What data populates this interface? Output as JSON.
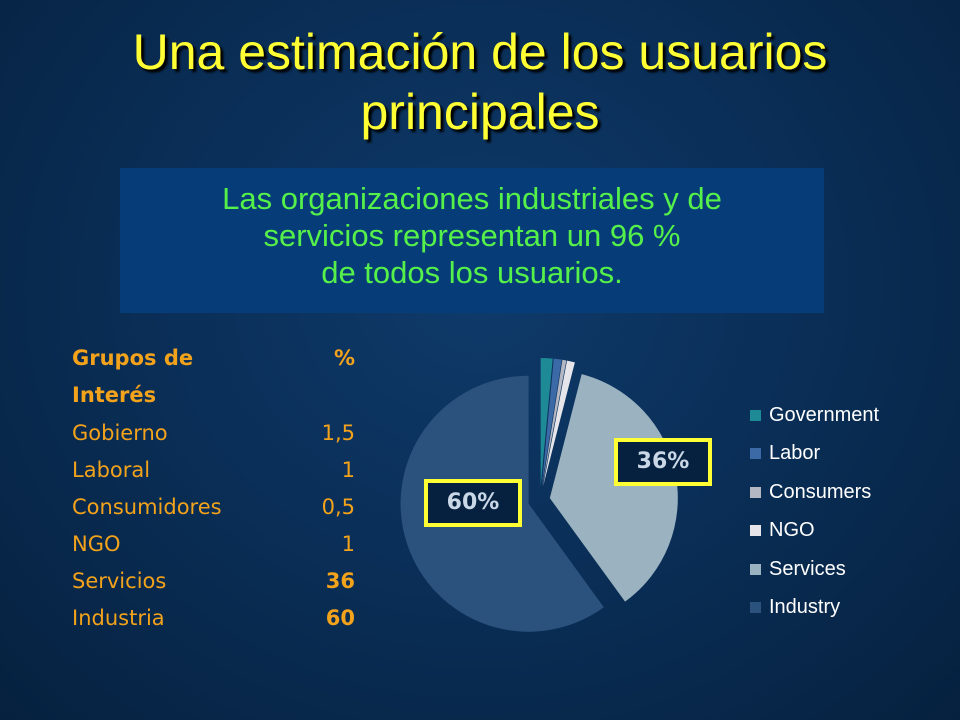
{
  "title": {
    "line1": "Una estimación de los usuarios",
    "line2": "principales"
  },
  "subtitle": {
    "line1": "Las organizaciones industriales y de",
    "line2": "servicios representan un 96 %",
    "line3": "de todos los usuarios."
  },
  "table": {
    "header_name_line1": "Grupos de",
    "header_name_line2": "Interés",
    "header_pct": "%",
    "rows": [
      {
        "name": "Gobierno",
        "value": "1,5"
      },
      {
        "name": "Laboral",
        "value": "1"
      },
      {
        "name": "Consumidores",
        "value": "0,5"
      },
      {
        "name": "NGO",
        "value": "1"
      },
      {
        "name": "Servicios",
        "value": "36"
      },
      {
        "name": "Industria",
        "value": "60"
      }
    ]
  },
  "chart_data": {
    "type": "pie",
    "categories": [
      "Government",
      "Labor",
      "Consumers",
      "NGO",
      "Services",
      "Industry"
    ],
    "values": [
      1.5,
      1,
      0.5,
      1,
      36,
      60
    ],
    "colors": [
      "#1e8a96",
      "#3c6aa6",
      "#b4b8c2",
      "#e6e6ea",
      "#9bb3c0",
      "#2b527d"
    ],
    "exploded": true,
    "legend": "right",
    "data_labels": {
      "Services": "36%",
      "Industry": "60%"
    }
  },
  "colors": {
    "title": "#ffff33",
    "subtitle_text": "#55f04a",
    "subtitle_bg": "#063d78",
    "table_text": "#f2a21b",
    "callout_border": "#ffff33"
  }
}
